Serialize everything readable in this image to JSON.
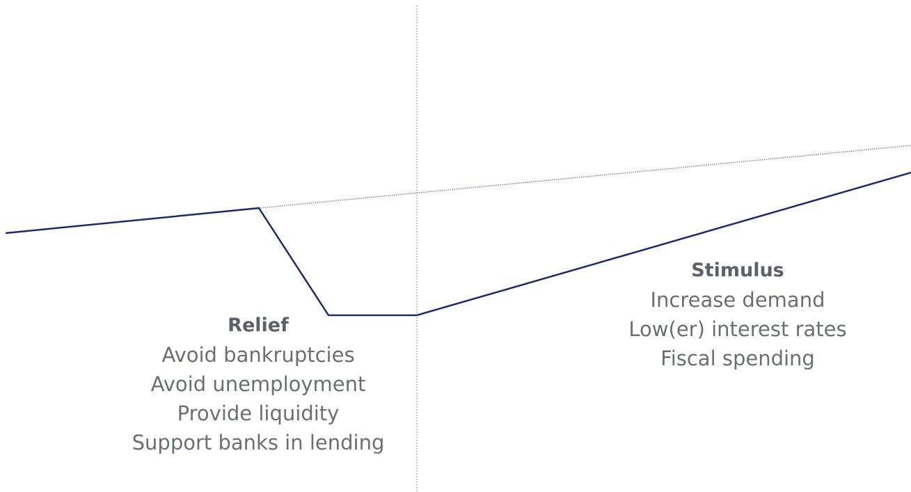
{
  "colors": {
    "curve": "#1c2a6e",
    "trend": "#7d86ad",
    "divider": "#9a9a9a",
    "heading_text": "#5d6066",
    "item_text": "#6b6e74"
  },
  "relief": {
    "heading": "Relief",
    "items": [
      "Avoid bankruptcies",
      "Avoid unemployment",
      "Provide liquidity",
      "Support banks in lending"
    ]
  },
  "stimulus": {
    "heading": "Stimulus",
    "items": [
      "Increase demand",
      "Low(er) interest rates",
      "Fiscal spending"
    ]
  }
}
